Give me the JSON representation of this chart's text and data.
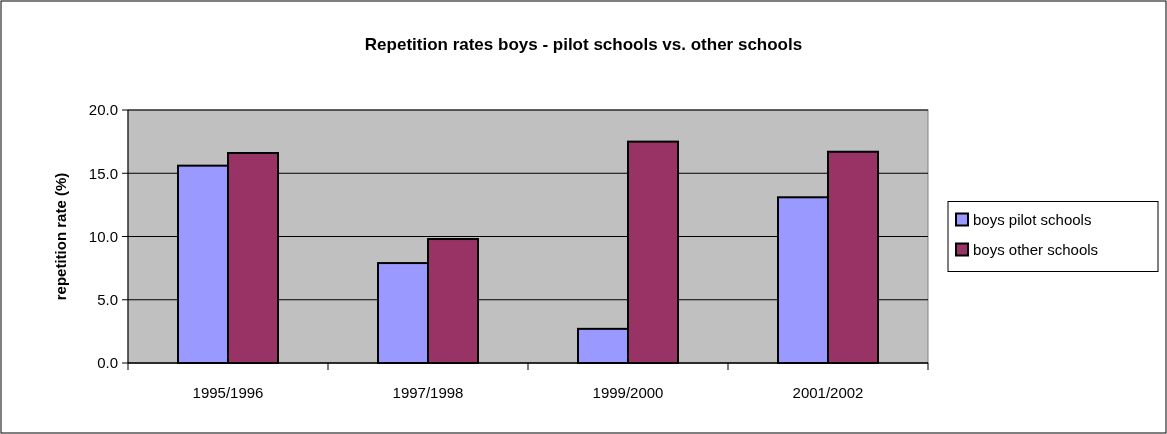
{
  "chart_data": {
    "type": "bar",
    "title": "Repetition rates boys - pilot schools vs. other schools",
    "ylabel": "repetition rate (%)",
    "categories": [
      "1995/1996",
      "1997/1998",
      "1999/2000",
      "2001/2002"
    ],
    "series": [
      {
        "name": "boys pilot schools",
        "color": "#9999ff",
        "values": [
          15.6,
          7.9,
          2.7,
          13.1
        ]
      },
      {
        "name": "boys other schools",
        "color": "#993366",
        "values": [
          16.6,
          9.8,
          17.5,
          16.7
        ]
      }
    ],
    "ylim": [
      0,
      20
    ],
    "yticks": [
      {
        "value": 0,
        "label": "0.0"
      },
      {
        "value": 5,
        "label": "5.0"
      },
      {
        "value": 10,
        "label": "10.0"
      },
      {
        "value": 15,
        "label": "15.0"
      },
      {
        "value": 20,
        "label": "20.0"
      }
    ],
    "grid": "y",
    "legend": "right"
  }
}
